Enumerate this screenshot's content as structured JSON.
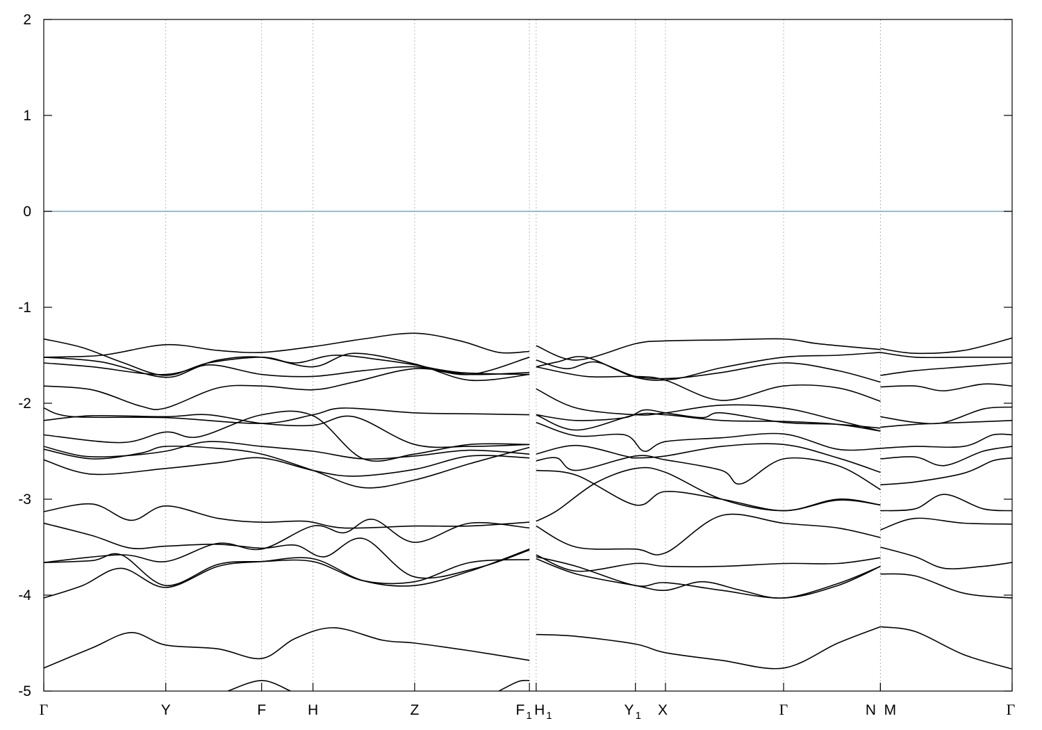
{
  "chart_data": {
    "type": "line",
    "title": "",
    "xlabel": "",
    "ylabel": "",
    "ylim": [
      -5,
      2
    ],
    "yticks": [
      {
        "value": -5,
        "label": "-5"
      },
      {
        "value": -4,
        "label": "-4"
      },
      {
        "value": -3,
        "label": "-3"
      },
      {
        "value": -2,
        "label": "-2"
      },
      {
        "value": -1,
        "label": "-1"
      },
      {
        "value": 0,
        "label": "0"
      },
      {
        "value": 1,
        "label": "1"
      },
      {
        "value": 2,
        "label": "2"
      }
    ],
    "xlim": [
      0,
      1
    ],
    "kpoints": [
      {
        "label": "Γ",
        "pos": 0.0,
        "font": "serif",
        "sub": ""
      },
      {
        "label": "Y",
        "pos": 0.126,
        "font": "sans",
        "sub": ""
      },
      {
        "label": "F",
        "pos": 0.225,
        "font": "sans",
        "sub": ""
      },
      {
        "label": "H",
        "pos": 0.278,
        "font": "sans",
        "sub": ""
      },
      {
        "label": "Z",
        "pos": 0.383,
        "font": "sans",
        "sub": ""
      },
      {
        "label": "F",
        "pos": 0.5015,
        "font": "sans",
        "sub": "1"
      },
      {
        "label": "H",
        "pos": 0.5085,
        "font": "sans",
        "sub": "1"
      },
      {
        "label": "Y",
        "pos": 0.611,
        "font": "sans",
        "sub": "1"
      },
      {
        "label": "X",
        "pos": 0.642,
        "font": "sans",
        "sub": ""
      },
      {
        "label": "Γ",
        "pos": 0.764,
        "font": "serif",
        "sub": ""
      },
      {
        "label": "N",
        "pos": 0.864,
        "font": "sans",
        "sub": ""
      },
      {
        "label": "M",
        "pos": 0.864,
        "font": "sans",
        "sub": ""
      },
      {
        "label": "Γ",
        "pos": 1.0,
        "font": "serif",
        "sub": ""
      }
    ],
    "fermi_level": 0,
    "fermi_color": "#5fb4c9",
    "band_color": "#000000",
    "grid": "vertical dashed at k-points",
    "series": [
      {
        "x": [
          0,
          0.04,
          0.08,
          0.126,
          0.17,
          0.225,
          0.26,
          0.3,
          0.35,
          0.383,
          0.43,
          0.5015
        ],
        "values": [
          -1.33,
          -1.42,
          -1.57,
          -1.71,
          -1.58,
          -1.52,
          -1.58,
          -1.5,
          -1.55,
          -1.6,
          -1.68,
          -1.7
        ]
      },
      {
        "x": [
          0,
          0.06,
          0.126,
          0.18,
          0.225,
          0.278,
          0.33,
          0.383,
          0.43,
          0.47,
          0.5015
        ],
        "values": [
          -1.52,
          -1.5,
          -1.39,
          -1.45,
          -1.47,
          -1.41,
          -1.33,
          -1.27,
          -1.35,
          -1.47,
          -1.46
        ]
      },
      {
        "x": [
          0,
          0.06,
          0.126,
          0.17,
          0.225,
          0.278,
          0.33,
          0.383,
          0.44,
          0.5015
        ],
        "values": [
          -1.52,
          -1.57,
          -1.73,
          -1.6,
          -1.7,
          -1.72,
          -1.66,
          -1.62,
          -1.7,
          -1.52
        ]
      },
      {
        "x": [
          0,
          0.05,
          0.126,
          0.18,
          0.225,
          0.278,
          0.32,
          0.383,
          0.44,
          0.5015
        ],
        "values": [
          -1.58,
          -1.62,
          -1.7,
          -1.55,
          -1.52,
          -1.62,
          -1.48,
          -1.59,
          -1.76,
          -1.7
        ]
      },
      {
        "x": [
          0,
          0.05,
          0.1,
          0.126,
          0.18,
          0.225,
          0.278,
          0.32,
          0.383,
          0.44,
          0.5015
        ],
        "values": [
          -1.82,
          -1.86,
          -2.03,
          -2.05,
          -1.84,
          -1.82,
          -1.86,
          -1.78,
          -1.64,
          -1.7,
          -1.68
        ]
      },
      {
        "x": [
          0,
          0.03,
          0.126,
          0.225,
          0.278,
          0.31,
          0.383,
          0.44,
          0.5015
        ],
        "values": [
          -2.05,
          -2.14,
          -2.15,
          -2.21,
          -2.12,
          -2.05,
          -2.1,
          -2.11,
          -2.12
        ]
      },
      {
        "x": [
          0,
          0.05,
          0.126,
          0.17,
          0.225,
          0.278,
          0.32,
          0.383,
          0.44,
          0.5015
        ],
        "values": [
          -2.18,
          -2.13,
          -2.14,
          -2.12,
          -2.21,
          -2.23,
          -2.14,
          -2.43,
          -2.45,
          -2.43
        ]
      },
      {
        "x": [
          0,
          0.08,
          0.126,
          0.16,
          0.225,
          0.278,
          0.33,
          0.383,
          0.44,
          0.5015
        ],
        "values": [
          -2.33,
          -2.41,
          -2.3,
          -2.35,
          -2.12,
          -2.13,
          -2.58,
          -2.53,
          -2.43,
          -2.43
        ]
      },
      {
        "x": [
          0,
          0.04,
          0.08,
          0.126,
          0.17,
          0.225,
          0.278,
          0.33,
          0.383,
          0.44,
          0.5015
        ],
        "values": [
          -2.45,
          -2.55,
          -2.55,
          -2.5,
          -2.4,
          -2.45,
          -2.5,
          -2.58,
          -2.55,
          -2.49,
          -2.53
        ]
      },
      {
        "x": [
          0,
          0.05,
          0.1,
          0.126,
          0.18,
          0.225,
          0.278,
          0.33,
          0.383,
          0.44,
          0.5015
        ],
        "values": [
          -2.48,
          -2.58,
          -2.52,
          -2.45,
          -2.47,
          -2.53,
          -2.7,
          -2.88,
          -2.8,
          -2.63,
          -2.46
        ]
      },
      {
        "x": [
          0,
          0.05,
          0.126,
          0.18,
          0.225,
          0.278,
          0.32,
          0.383,
          0.44,
          0.5015
        ],
        "values": [
          -2.59,
          -2.74,
          -2.68,
          -2.62,
          -2.57,
          -2.7,
          -2.76,
          -2.69,
          -2.55,
          -2.57
        ]
      },
      {
        "x": [
          0,
          0.05,
          0.09,
          0.126,
          0.18,
          0.225,
          0.27,
          0.31,
          0.383,
          0.44,
          0.5015
        ],
        "values": [
          -3.13,
          -3.05,
          -3.22,
          -3.07,
          -3.2,
          -3.24,
          -3.23,
          -3.3,
          -3.28,
          -3.28,
          -3.24
        ]
      },
      {
        "x": [
          0,
          0.05,
          0.09,
          0.126,
          0.18,
          0.225,
          0.26,
          0.29,
          0.33,
          0.383,
          0.45,
          0.5015
        ],
        "values": [
          -3.25,
          -3.38,
          -3.51,
          -3.49,
          -3.47,
          -3.51,
          -3.48,
          -3.6,
          -3.41,
          -3.81,
          -3.71,
          -3.53
        ]
      },
      {
        "x": [
          0,
          0.08,
          0.126,
          0.18,
          0.225,
          0.278,
          0.31,
          0.34,
          0.383,
          0.44,
          0.5015
        ],
        "values": [
          -3.66,
          -3.58,
          -3.65,
          -3.46,
          -3.52,
          -3.28,
          -3.35,
          -3.21,
          -3.45,
          -3.25,
          -3.3
        ]
      },
      {
        "x": [
          0,
          0.05,
          0.08,
          0.126,
          0.18,
          0.225,
          0.278,
          0.33,
          0.383,
          0.44,
          0.5015
        ],
        "values": [
          -3.66,
          -3.64,
          -3.58,
          -3.9,
          -3.68,
          -3.65,
          -3.65,
          -3.85,
          -3.86,
          -3.66,
          -3.63
        ]
      },
      {
        "x": [
          0,
          0.04,
          0.08,
          0.126,
          0.18,
          0.225,
          0.278,
          0.33,
          0.383,
          0.44,
          0.5015
        ],
        "values": [
          -4.03,
          -3.9,
          -3.72,
          -3.92,
          -3.7,
          -3.65,
          -3.62,
          -3.85,
          -3.9,
          -3.75,
          -3.52
        ]
      },
      {
        "x": [
          0,
          0.05,
          0.09,
          0.126,
          0.18,
          0.225,
          0.26,
          0.3,
          0.35,
          0.383,
          0.44,
          0.5015
        ],
        "values": [
          -4.76,
          -4.55,
          -4.39,
          -4.52,
          -4.56,
          -4.66,
          -4.45,
          -4.34,
          -4.47,
          -4.5,
          -4.58,
          -4.68
        ]
      },
      {
        "x": [
          0.19,
          0.225,
          0.255
        ],
        "values": [
          -5.0,
          -4.89,
          -5.0
        ]
      },
      {
        "x": [
          0.47,
          0.49,
          0.5015
        ],
        "values": [
          -5.0,
          -4.9,
          -4.89
        ]
      },
      {
        "x": [
          0.5085,
          0.55,
          0.611,
          0.642,
          0.7,
          0.764,
          0.8,
          0.864
        ],
        "values": [
          -1.4,
          -1.55,
          -1.38,
          -1.35,
          -1.34,
          -1.33,
          -1.38,
          -1.44
        ]
      },
      {
        "x": [
          0.5085,
          0.53,
          0.56,
          0.611,
          0.65,
          0.7,
          0.764,
          0.82,
          0.864
        ],
        "values": [
          -1.62,
          -1.57,
          -1.52,
          -1.73,
          -1.75,
          -1.63,
          -1.52,
          -1.5,
          -1.47
        ]
      },
      {
        "x": [
          0.5085,
          0.54,
          0.57,
          0.611,
          0.65,
          0.7,
          0.764,
          0.82,
          0.864
        ],
        "values": [
          -1.55,
          -1.64,
          -1.57,
          -1.72,
          -1.74,
          -1.68,
          -1.58,
          -1.66,
          -1.78
        ]
      },
      {
        "x": [
          0.5085,
          0.56,
          0.611,
          0.642,
          0.7,
          0.764,
          0.82,
          0.864
        ],
        "values": [
          -1.62,
          -1.72,
          -1.72,
          -1.76,
          -1.97,
          -1.82,
          -1.84,
          -1.98
        ]
      },
      {
        "x": [
          0.5085,
          0.55,
          0.611,
          0.642,
          0.7,
          0.764,
          0.82,
          0.864
        ],
        "values": [
          -1.85,
          -2.05,
          -2.12,
          -2.1,
          -2.02,
          -2.05,
          -2.18,
          -2.29
        ]
      },
      {
        "x": [
          0.5085,
          0.55,
          0.6,
          0.62,
          0.642,
          0.68,
          0.7,
          0.764,
          0.82,
          0.864
        ],
        "values": [
          -2.12,
          -2.18,
          -2.15,
          -2.07,
          -2.1,
          -2.15,
          -2.1,
          -2.2,
          -2.22,
          -2.26
        ]
      },
      {
        "x": [
          0.5085,
          0.55,
          0.611,
          0.642,
          0.7,
          0.764,
          0.82,
          0.864
        ],
        "values": [
          -2.12,
          -2.28,
          -2.12,
          -2.12,
          -2.18,
          -2.19,
          -2.22,
          -2.29
        ]
      },
      {
        "x": [
          0.5085,
          0.55,
          0.6,
          0.62,
          0.642,
          0.7,
          0.764,
          0.82,
          0.864
        ],
        "values": [
          -2.2,
          -2.34,
          -2.33,
          -2.5,
          -2.4,
          -2.36,
          -2.32,
          -2.48,
          -2.47
        ]
      },
      {
        "x": [
          0.5085,
          0.55,
          0.6,
          0.611,
          0.642,
          0.7,
          0.764,
          0.82,
          0.864
        ],
        "values": [
          -2.53,
          -2.44,
          -2.55,
          -2.57,
          -2.55,
          -2.45,
          -2.43,
          -2.57,
          -2.72
        ]
      },
      {
        "x": [
          0.5085,
          0.53,
          0.55,
          0.611,
          0.642,
          0.7,
          0.72,
          0.764,
          0.82,
          0.864
        ],
        "values": [
          -2.6,
          -2.57,
          -2.7,
          -2.55,
          -2.59,
          -2.7,
          -2.84,
          -2.58,
          -2.65,
          -2.9
        ]
      },
      {
        "x": [
          0.5085,
          0.55,
          0.611,
          0.642,
          0.7,
          0.764,
          0.82,
          0.864
        ],
        "values": [
          -2.7,
          -2.75,
          -3.06,
          -2.92,
          -3.0,
          -3.12,
          -3.01,
          -3.06
        ]
      },
      {
        "x": [
          0.5085,
          0.53,
          0.57,
          0.611,
          0.642,
          0.7,
          0.764,
          0.82,
          0.864
        ],
        "values": [
          -3.23,
          -3.12,
          -2.83,
          -2.68,
          -2.72,
          -3.0,
          -3.12,
          -3.0,
          -3.06
        ]
      },
      {
        "x": [
          0.5085,
          0.55,
          0.611,
          0.642,
          0.7,
          0.764,
          0.82,
          0.864
        ],
        "values": [
          -3.28,
          -3.5,
          -3.52,
          -3.56,
          -3.17,
          -3.25,
          -3.3,
          -3.4
        ]
      },
      {
        "x": [
          0.5085,
          0.55,
          0.611,
          0.642,
          0.7,
          0.764,
          0.82,
          0.864
        ],
        "values": [
          -3.58,
          -3.75,
          -3.67,
          -3.7,
          -3.7,
          -3.67,
          -3.67,
          -3.61
        ]
      },
      {
        "x": [
          0.5085,
          0.55,
          0.611,
          0.642,
          0.7,
          0.764,
          0.82,
          0.864
        ],
        "values": [
          -3.6,
          -3.7,
          -3.9,
          -3.87,
          -3.95,
          -4.03,
          -3.9,
          -3.7
        ]
      },
      {
        "x": [
          0.5085,
          0.55,
          0.611,
          0.642,
          0.68,
          0.72,
          0.764,
          0.82,
          0.864
        ],
        "values": [
          -3.62,
          -3.78,
          -3.9,
          -3.95,
          -3.86,
          -3.95,
          -4.03,
          -3.88,
          -3.7
        ]
      },
      {
        "x": [
          0.5085,
          0.55,
          0.611,
          0.642,
          0.7,
          0.764,
          0.82,
          0.864
        ],
        "values": [
          -4.41,
          -4.43,
          -4.51,
          -4.6,
          -4.68,
          -4.76,
          -4.5,
          -4.33
        ]
      },
      {
        "x": [
          0.864,
          0.9,
          0.95,
          1.0
        ],
        "values": [
          -1.43,
          -1.48,
          -1.45,
          -1.32
        ]
      },
      {
        "x": [
          0.864,
          0.9,
          0.95,
          1.0
        ],
        "values": [
          -1.47,
          -1.52,
          -1.52,
          -1.52
        ]
      },
      {
        "x": [
          0.864,
          0.9,
          0.95,
          1.0
        ],
        "values": [
          -1.71,
          -1.66,
          -1.62,
          -1.58
        ]
      },
      {
        "x": [
          0.864,
          0.9,
          0.93,
          0.97,
          1.0
        ],
        "values": [
          -1.83,
          -1.82,
          -1.87,
          -1.8,
          -1.82
        ]
      },
      {
        "x": [
          0.864,
          0.9,
          0.93,
          0.97,
          1.0
        ],
        "values": [
          -2.14,
          -2.2,
          -2.2,
          -2.06,
          -2.04
        ]
      },
      {
        "x": [
          0.864,
          0.9,
          0.95,
          1.0
        ],
        "values": [
          -2.25,
          -2.22,
          -2.2,
          -2.18
        ]
      },
      {
        "x": [
          0.864,
          0.9,
          0.95,
          0.98,
          1.0
        ],
        "values": [
          -2.47,
          -2.45,
          -2.45,
          -2.33,
          -2.33
        ]
      },
      {
        "x": [
          0.864,
          0.9,
          0.93,
          0.97,
          1.0
        ],
        "values": [
          -2.58,
          -2.56,
          -2.65,
          -2.5,
          -2.45
        ]
      },
      {
        "x": [
          0.864,
          0.9,
          0.95,
          0.98,
          1.0
        ],
        "values": [
          -2.85,
          -2.82,
          -2.73,
          -2.6,
          -2.57
        ]
      },
      {
        "x": [
          0.864,
          0.9,
          0.93,
          0.97,
          1.0
        ],
        "values": [
          -3.12,
          -3.1,
          -2.95,
          -3.1,
          -3.12
        ]
      },
      {
        "x": [
          0.864,
          0.9,
          0.95,
          1.0
        ],
        "values": [
          -3.32,
          -3.2,
          -3.25,
          -3.26
        ]
      },
      {
        "x": [
          0.864,
          0.9,
          0.93,
          0.97,
          1.0
        ],
        "values": [
          -3.5,
          -3.6,
          -3.72,
          -3.7,
          -3.66
        ]
      },
      {
        "x": [
          0.864,
          0.9,
          0.95,
          1.0
        ],
        "values": [
          -3.78,
          -3.8,
          -3.98,
          -4.03
        ]
      },
      {
        "x": [
          0.864,
          0.9,
          0.95,
          1.0
        ],
        "values": [
          -4.33,
          -4.38,
          -4.62,
          -4.77
        ]
      }
    ]
  }
}
